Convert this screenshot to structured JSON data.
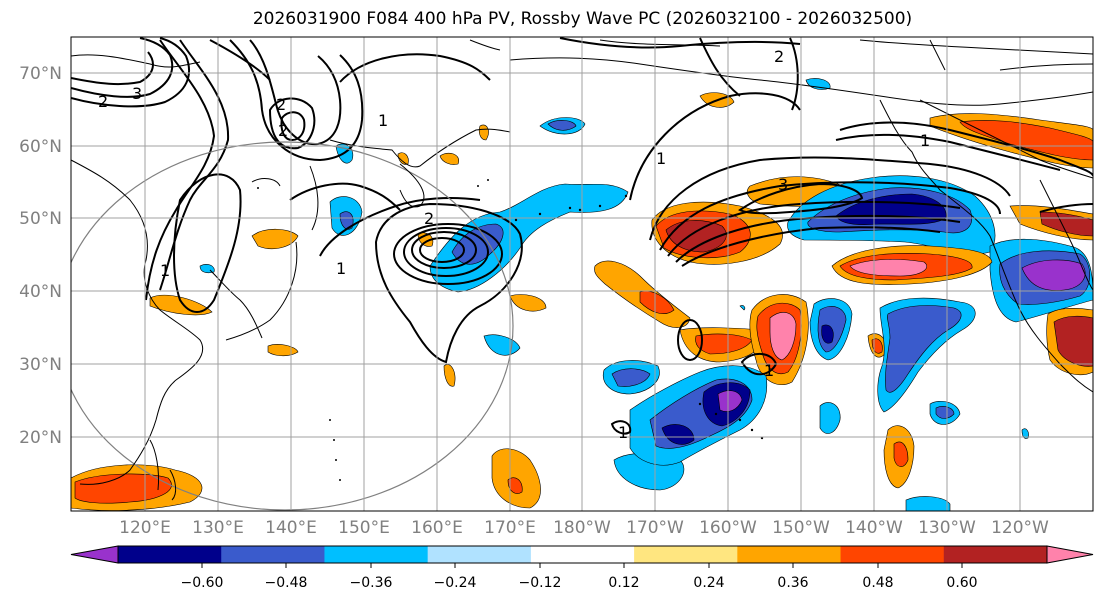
{
  "title": "2026031900 F084 400 hPa PV, Rossby Wave PC (2026032100 - 2026032500)",
  "map": {
    "lat_labels": [
      "70°N",
      "60°N",
      "50°N",
      "40°N",
      "30°N",
      "20°N"
    ],
    "lon_labels": [
      "120°E",
      "130°E",
      "140°E",
      "150°E",
      "160°E",
      "170°E",
      "180°W",
      "170°W",
      "160°W",
      "150°W",
      "140°W",
      "130°W",
      "120°W"
    ],
    "contour_labels": [
      "2",
      "3",
      "2",
      "2",
      "1",
      "2",
      "2",
      "1",
      "1",
      "1",
      "3",
      "1",
      "1",
      "1"
    ],
    "colors": {
      "land_outline": "#000000",
      "grid": "#a0a0a0",
      "axis_label": "#808080",
      "contour": "#000000",
      "circle": "#808080"
    }
  },
  "colorbar": {
    "ticks": [
      "−0.60",
      "−0.48",
      "−0.36",
      "−0.24",
      "−0.12",
      "0.12",
      "0.24",
      "0.36",
      "0.48",
      "0.60"
    ],
    "colors": [
      "#9932cc",
      "#00008b",
      "#3a5bcc",
      "#00bfff",
      "#b0e2ff",
      "#ffffff",
      "#ffe680",
      "#ffa500",
      "#ff4500",
      "#b22222",
      "#ff82ab"
    ]
  }
}
